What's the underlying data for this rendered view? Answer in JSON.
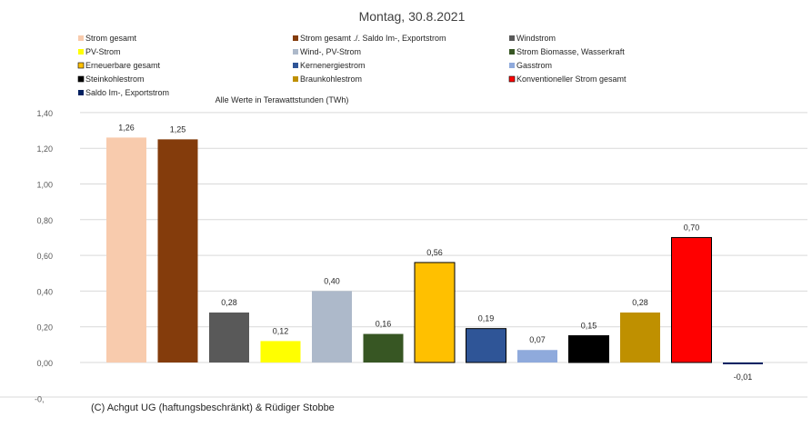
{
  "chart_data": {
    "type": "bar",
    "title": "Montag, 30.8.2021",
    "subtitle": "Alle Werte in Terawattstunden (TWh)",
    "footer": "(C) Achgut UG (haftungsbeschränkt) & Rüdiger Stobbe",
    "ylim": [
      -0.2,
      1.4
    ],
    "yticks": [
      "-0,",
      "0,00",
      "0,20",
      "0,40",
      "0,60",
      "0,80",
      "1,00",
      "1,20",
      "1,40"
    ],
    "grid": true,
    "legend_position": "top",
    "categories": [
      "Strom gesamt",
      "Strom gesamt ./. Saldo Im-, Exportstrom",
      "Windstrom",
      "PV-Strom",
      "Wind-, PV-Strom",
      "Strom Biomasse, Wasserkraft",
      "Erneuerbare gesamt",
      "Kernenergiestrom",
      "Gasstrom",
      "Steinkohlestrom",
      "Braunkohlestrom",
      "Konventioneller Strom gesamt",
      "Saldo Im-, Exportstrom"
    ],
    "values": [
      1.26,
      1.25,
      0.28,
      0.12,
      0.4,
      0.16,
      0.56,
      0.19,
      0.07,
      0.15,
      0.28,
      0.7,
      -0.01
    ],
    "value_labels": [
      "1,26",
      "1,25",
      "0,28",
      "0,12",
      "0,40",
      "0,16",
      "0,56",
      "0,19",
      "0,07",
      "0,15",
      "0,28",
      "0,70",
      "-0,01"
    ],
    "colors": [
      "#f8cbad",
      "#843c0c",
      "#595959",
      "#ffff00",
      "#adb9ca",
      "#375623",
      "#ffc000",
      "#2f5597",
      "#8faadc",
      "#000000",
      "#bf9000",
      "#ff0000",
      "#002060"
    ],
    "bar_order": [
      0,
      1,
      2,
      3,
      4,
      5,
      6,
      7,
      8,
      9,
      10,
      11,
      12
    ]
  }
}
